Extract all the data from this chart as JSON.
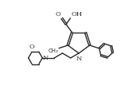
{
  "background_color": "#ffffff",
  "line_color": "#2a2a2a",
  "line_width": 1.0,
  "figure_width": 1.71,
  "figure_height": 1.22,
  "dpi": 100,
  "xlim": [
    0,
    10
  ],
  "ylim": [
    0,
    7
  ]
}
